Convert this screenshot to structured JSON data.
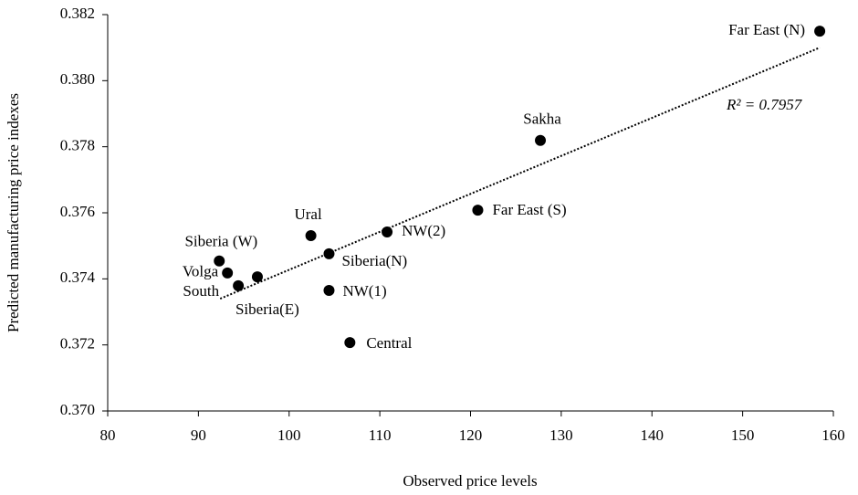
{
  "chart_data": {
    "type": "scatter",
    "x_label": "Observed price levels",
    "y_label": "Predicted manufacturing price indexes",
    "labels": [
      "Far East (N)",
      "Sakha",
      "Far East (S)",
      "NW(2)",
      "Ural",
      "Siberia(N)",
      "Siberia (W)",
      "Volga",
      "Siberia(E)",
      "South",
      "NW(1)",
      "Central"
    ],
    "x": [
      158.5,
      127.7,
      120.8,
      110.8,
      102.4,
      104.4,
      92.3,
      93.2,
      96.5,
      94.4,
      104.4,
      106.7
    ],
    "y": [
      0.3815,
      0.37819,
      0.37608,
      0.37542,
      0.37531,
      0.37476,
      0.37454,
      0.37418,
      0.37406,
      0.37379,
      0.37365,
      0.37207
    ],
    "color": "#000000",
    "trendline": {
      "x": [
        92.4,
        158.5
      ],
      "y": [
        0.3734,
        0.381
      ]
    },
    "annotation": "R² = 0.7957",
    "xlim": [
      80,
      160
    ],
    "ylim": [
      0.37,
      0.382
    ],
    "xticks": [
      80,
      90,
      100,
      110,
      120,
      130,
      140,
      150,
      160
    ],
    "yticks": [
      {
        "value": 0.37,
        "label": "0.370"
      },
      {
        "value": 0.372,
        "label": "0.372"
      },
      {
        "value": 0.374,
        "label": "0.374"
      },
      {
        "value": 0.376,
        "label": "0.376"
      },
      {
        "value": 0.378,
        "label": "0.378"
      },
      {
        "value": 0.38,
        "label": "0.380"
      },
      {
        "value": 0.382,
        "label": "0.382"
      }
    ]
  }
}
